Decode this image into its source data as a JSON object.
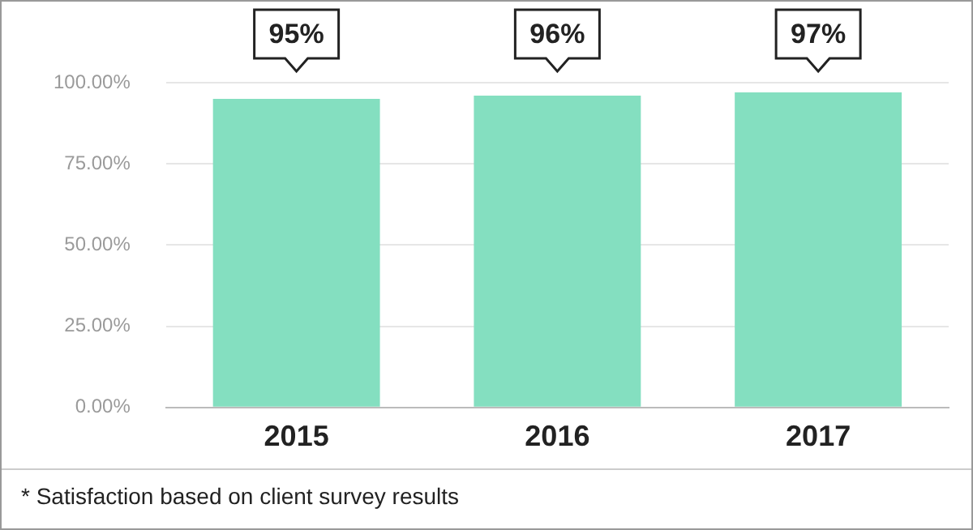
{
  "chart_data": {
    "type": "bar",
    "categories": [
      "2015",
      "2016",
      "2017"
    ],
    "values": [
      95,
      96,
      97
    ],
    "value_labels": [
      "95%",
      "96%",
      "97%"
    ],
    "color": "#84dfc0",
    "ylim": [
      0,
      100
    ],
    "yticks": [
      {
        "value": 0,
        "label": "0.00%"
      },
      {
        "value": 25,
        "label": "25.00%"
      },
      {
        "value": 50,
        "label": "50.00%"
      },
      {
        "value": 75,
        "label": "75.00%"
      },
      {
        "value": 100,
        "label": "100.00%"
      }
    ],
    "grid": "y",
    "annotations": [
      "* Satisfaction based on client survey results"
    ]
  }
}
